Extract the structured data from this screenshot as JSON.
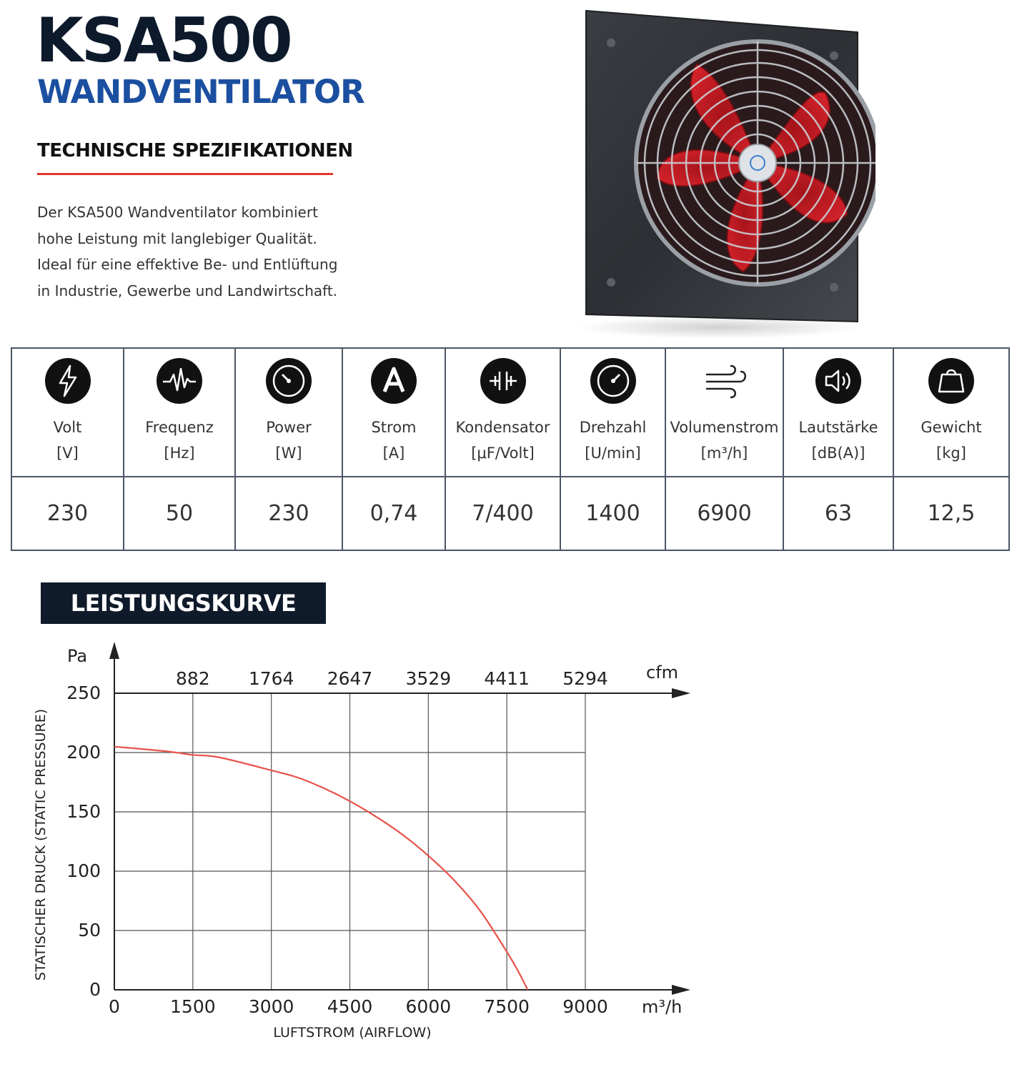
{
  "header": {
    "title": "KSA500",
    "subtitle": "WANDVENTILATOR",
    "spec_heading": "TECHNISCHE SPEZIFIKATIONEN",
    "description_lines": [
      "Der KSA500 Wandventilator kombiniert",
      "hohe Leistung mit langlebiger Qualität.",
      "Ideal für eine effektive Be- und Entlüftung",
      "in Industrie, Gewerbe und Landwirtschaft."
    ]
  },
  "colors": {
    "title": "#0d1a2b",
    "subtitle": "#1b4fa0",
    "accent_red": "#e2342b",
    "curve": "#e8524a",
    "table_border": "#4b5566"
  },
  "spec_table": {
    "columns": [
      {
        "icon": "lightning-bolt-icon",
        "label": "Volt",
        "unit": "[V]",
        "value": "230"
      },
      {
        "icon": "waveform-icon",
        "label": "Frequenz",
        "unit": "[Hz]",
        "value": "50"
      },
      {
        "icon": "gauge-icon",
        "label": "Power",
        "unit": "[W]",
        "value": "230"
      },
      {
        "icon": "ampere-icon",
        "label": "Strom",
        "unit": "[A]",
        "value": "0,74"
      },
      {
        "icon": "capacitor-icon",
        "label": "Kondensator",
        "unit": "[μF/Volt]",
        "value": "7/400"
      },
      {
        "icon": "speedometer-icon",
        "label": "Drehzahl",
        "unit": "[U/min]",
        "value": "1400"
      },
      {
        "icon": "airflow-icon",
        "label": "Volumenstrom",
        "unit": "[m³/h]",
        "value": "6900"
      },
      {
        "icon": "speaker-icon",
        "label": "Lautstärke",
        "unit": "[dB(A)]",
        "value": "63"
      },
      {
        "icon": "weight-icon",
        "label": "Gewicht",
        "unit": "[kg]",
        "value": "12,5"
      }
    ]
  },
  "chart_heading": "LEISTUNGSKURVE",
  "chart_data": {
    "type": "line",
    "xlabel": "LUFTSTROM (AIRFLOW)",
    "x_unit": "m³/h",
    "ylabel": "STATISCHER DRUCK (STATIC PRESSURE)",
    "y_unit": "Pa",
    "secondary_x_unit": "cfm",
    "x_ticks": [
      "0",
      "1500",
      "3000",
      "4500",
      "6000",
      "7500",
      "9000"
    ],
    "x_tick_values": [
      0,
      1500,
      3000,
      4500,
      6000,
      7500,
      9000
    ],
    "secondary_x_ticks": [
      "882",
      "1764",
      "2647",
      "3529",
      "4411",
      "5294"
    ],
    "y_ticks": [
      "0",
      "50",
      "100",
      "150",
      "200",
      "250"
    ],
    "y_tick_values": [
      0,
      50,
      100,
      150,
      200,
      250
    ],
    "xlim": [
      0,
      9000
    ],
    "ylim": [
      0,
      250
    ],
    "grid": true,
    "series": [
      {
        "x": [
          0,
          1000,
          1500,
          2000,
          3000,
          3500,
          4000,
          4500,
          5000,
          5500,
          6000,
          6500,
          7000,
          7500,
          7700,
          7900
        ],
        "y": [
          205,
          201,
          198,
          196,
          185,
          179,
          170,
          159,
          146,
          131,
          113,
          92,
          66,
          32,
          17,
          0
        ],
        "color": "#e8524a"
      }
    ]
  }
}
